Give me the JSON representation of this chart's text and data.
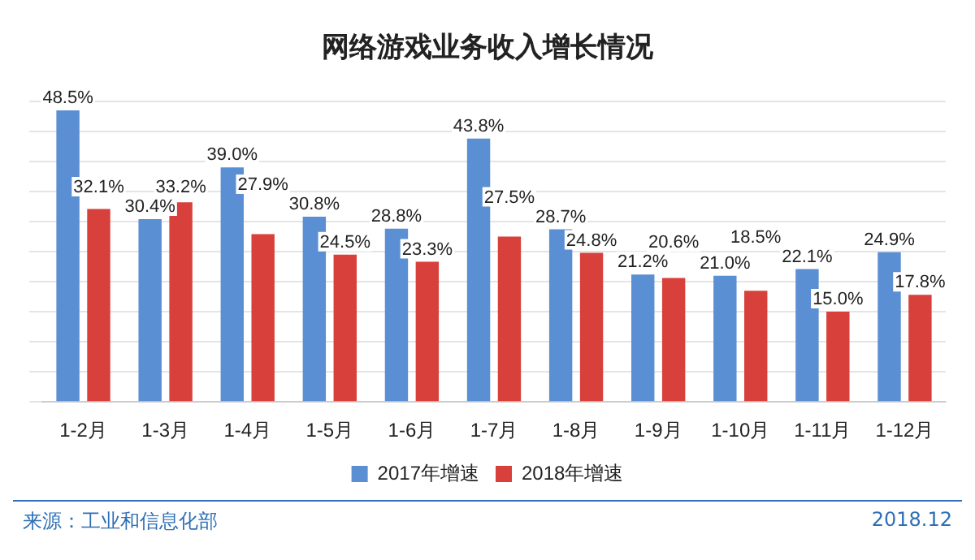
{
  "chart_data": {
    "type": "bar",
    "title": "网络游戏业务收入增长情况",
    "categories": [
      "1-2月",
      "1-3月",
      "1-4月",
      "1-5月",
      "1-6月",
      "1-7月",
      "1-8月",
      "1-9月",
      "1-10月",
      "1-11月",
      "1-12月"
    ],
    "series": [
      {
        "name": "2017年增速",
        "color": "#5b8fd3",
        "values": [
          48.5,
          30.4,
          39.0,
          30.8,
          28.8,
          43.8,
          28.7,
          21.2,
          21.0,
          22.1,
          24.9
        ],
        "value_labels": [
          "48.5%",
          "30.4%",
          "39.0%",
          "30.8%",
          "28.8%",
          "43.8%",
          "28.7%",
          "21.2%",
          "21.0%",
          "22.1%",
          "24.9%"
        ]
      },
      {
        "name": "2018年增速",
        "color": "#d8413b",
        "values": [
          32.1,
          33.2,
          27.9,
          24.5,
          23.3,
          27.5,
          24.8,
          20.6,
          18.5,
          15.0,
          17.8
        ],
        "value_labels": [
          "32.1%",
          "33.2%",
          "27.9%",
          "24.5%",
          "23.3%",
          "27.5%",
          "24.8%",
          "20.6%",
          "18.5%",
          "15.0%",
          "17.8%"
        ]
      }
    ],
    "grid": "y",
    "legend": "bottom",
    "tick_labels": "x",
    "annotations": [
      "来源：工业和信息化部",
      "2018.12"
    ]
  }
}
